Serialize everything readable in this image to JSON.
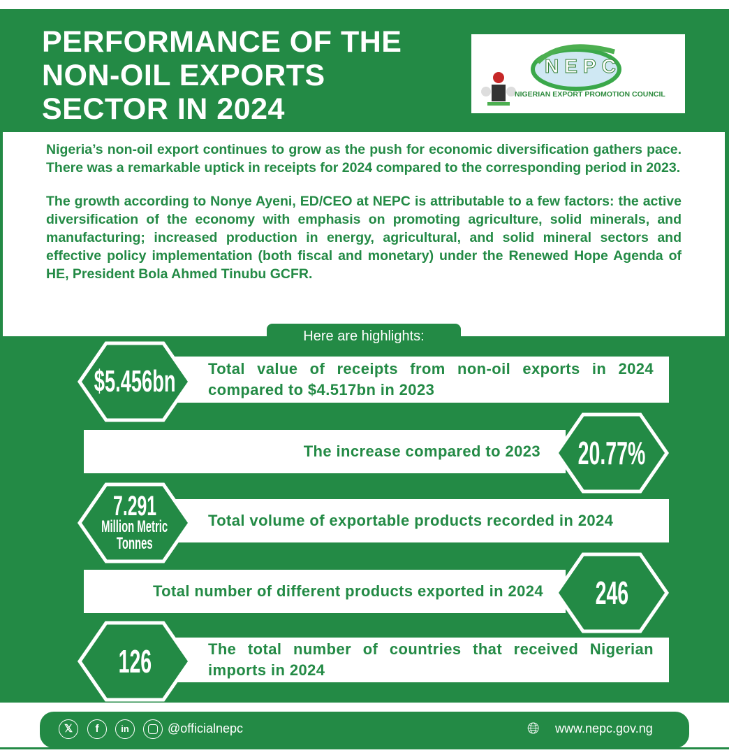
{
  "header": {
    "title_lines": [
      "PERFORMANCE OF THE",
      "NON-OIL EXPORTS",
      "SECTOR IN 2024"
    ],
    "logo": {
      "text": "NEPC",
      "subtitle": "NIGERIAN EXPORT PROMOTION COUNCIL"
    }
  },
  "intro": {
    "paragraphs": [
      "Nigeria’s non-oil export continues to grow as the push for economic diversification gathers pace. There was a remarkable uptick in receipts for 2024 compared to the corresponding period in 2023.",
      "The growth according to Nonye Ayeni, ED/CEO at NEPC is attributable to a few factors: the active diversification of the economy with emphasis on promoting agriculture, solid minerals, and manufacturing; increased production in energy, agricultural, and solid mineral sectors and effective policy implementation (both fiscal and monetary) under the Renewed Hope Agenda of HE, President Bola Ahmed Tinubu GCFR."
    ]
  },
  "highlights": {
    "heading": "Here are highlights:",
    "items": [
      {
        "value": "$5.456bn",
        "text": "Total value of receipts from non-oil exports in 2024 compared to $4.517bn in 2023"
      },
      {
        "value": "20.77%",
        "text": "The increase compared to 2023"
      },
      {
        "value": "7.291",
        "unit_line1": "Million Metric",
        "unit_line2": "Tonnes",
        "text": "Total volume of exportable products recorded in 2024"
      },
      {
        "value": "246",
        "text": "Total number of different products exported in 2024"
      },
      {
        "value": "126",
        "text": "The total number of countries that received Nigerian imports in 2024"
      }
    ]
  },
  "footer": {
    "handle": "@officialnepc",
    "website": "www.nepc.gov.ng",
    "social_icons": [
      "x-icon",
      "facebook-icon",
      "linkedin-icon",
      "instagram-icon"
    ]
  },
  "colors": {
    "brand_green": "#238a45",
    "white": "#ffffff"
  }
}
